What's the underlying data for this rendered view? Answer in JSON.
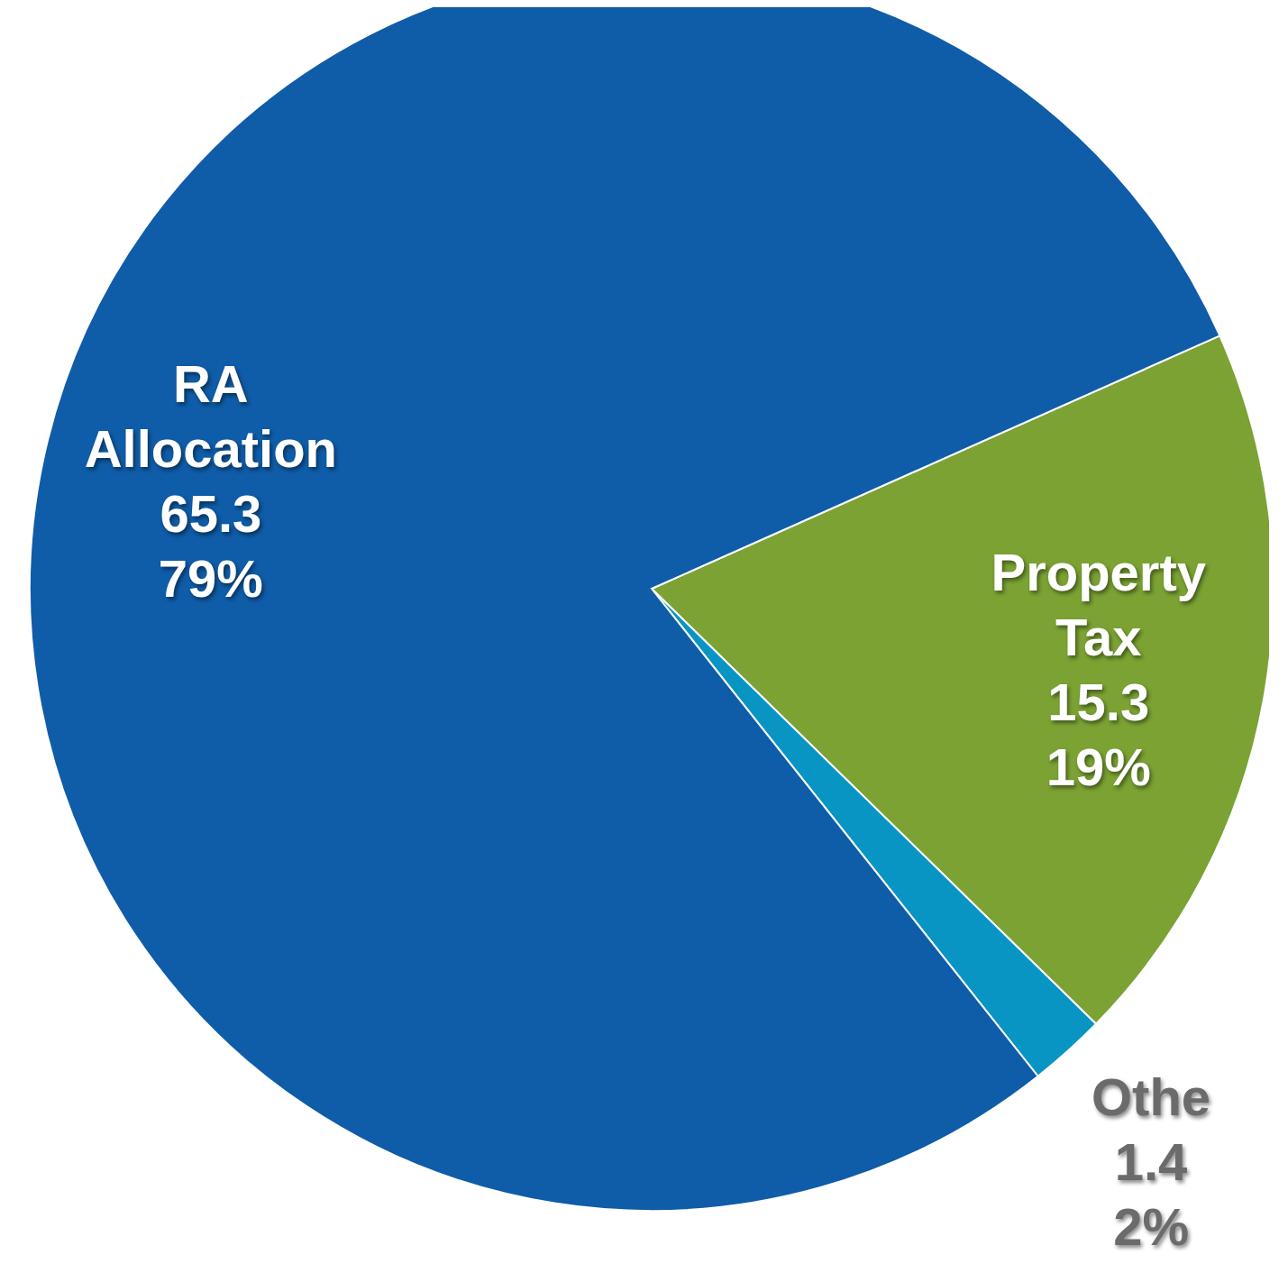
{
  "chart_data": {
    "type": "pie",
    "categories": [
      "Property Tax",
      "Othe",
      "RA Allocation"
    ],
    "values": [
      19,
      2,
      79
    ],
    "colors": [
      "#7ba233",
      "#0895c4",
      "#0f5ca8"
    ],
    "value_labels": [
      "19%",
      "2%",
      "79%"
    ],
    "annotations": [
      {
        "text": "15.3",
        "x": "Property Tax"
      },
      {
        "text": "1.4",
        "x": "Othe"
      },
      {
        "text": "65.3",
        "x": "RA Allocation"
      }
    ]
  }
}
